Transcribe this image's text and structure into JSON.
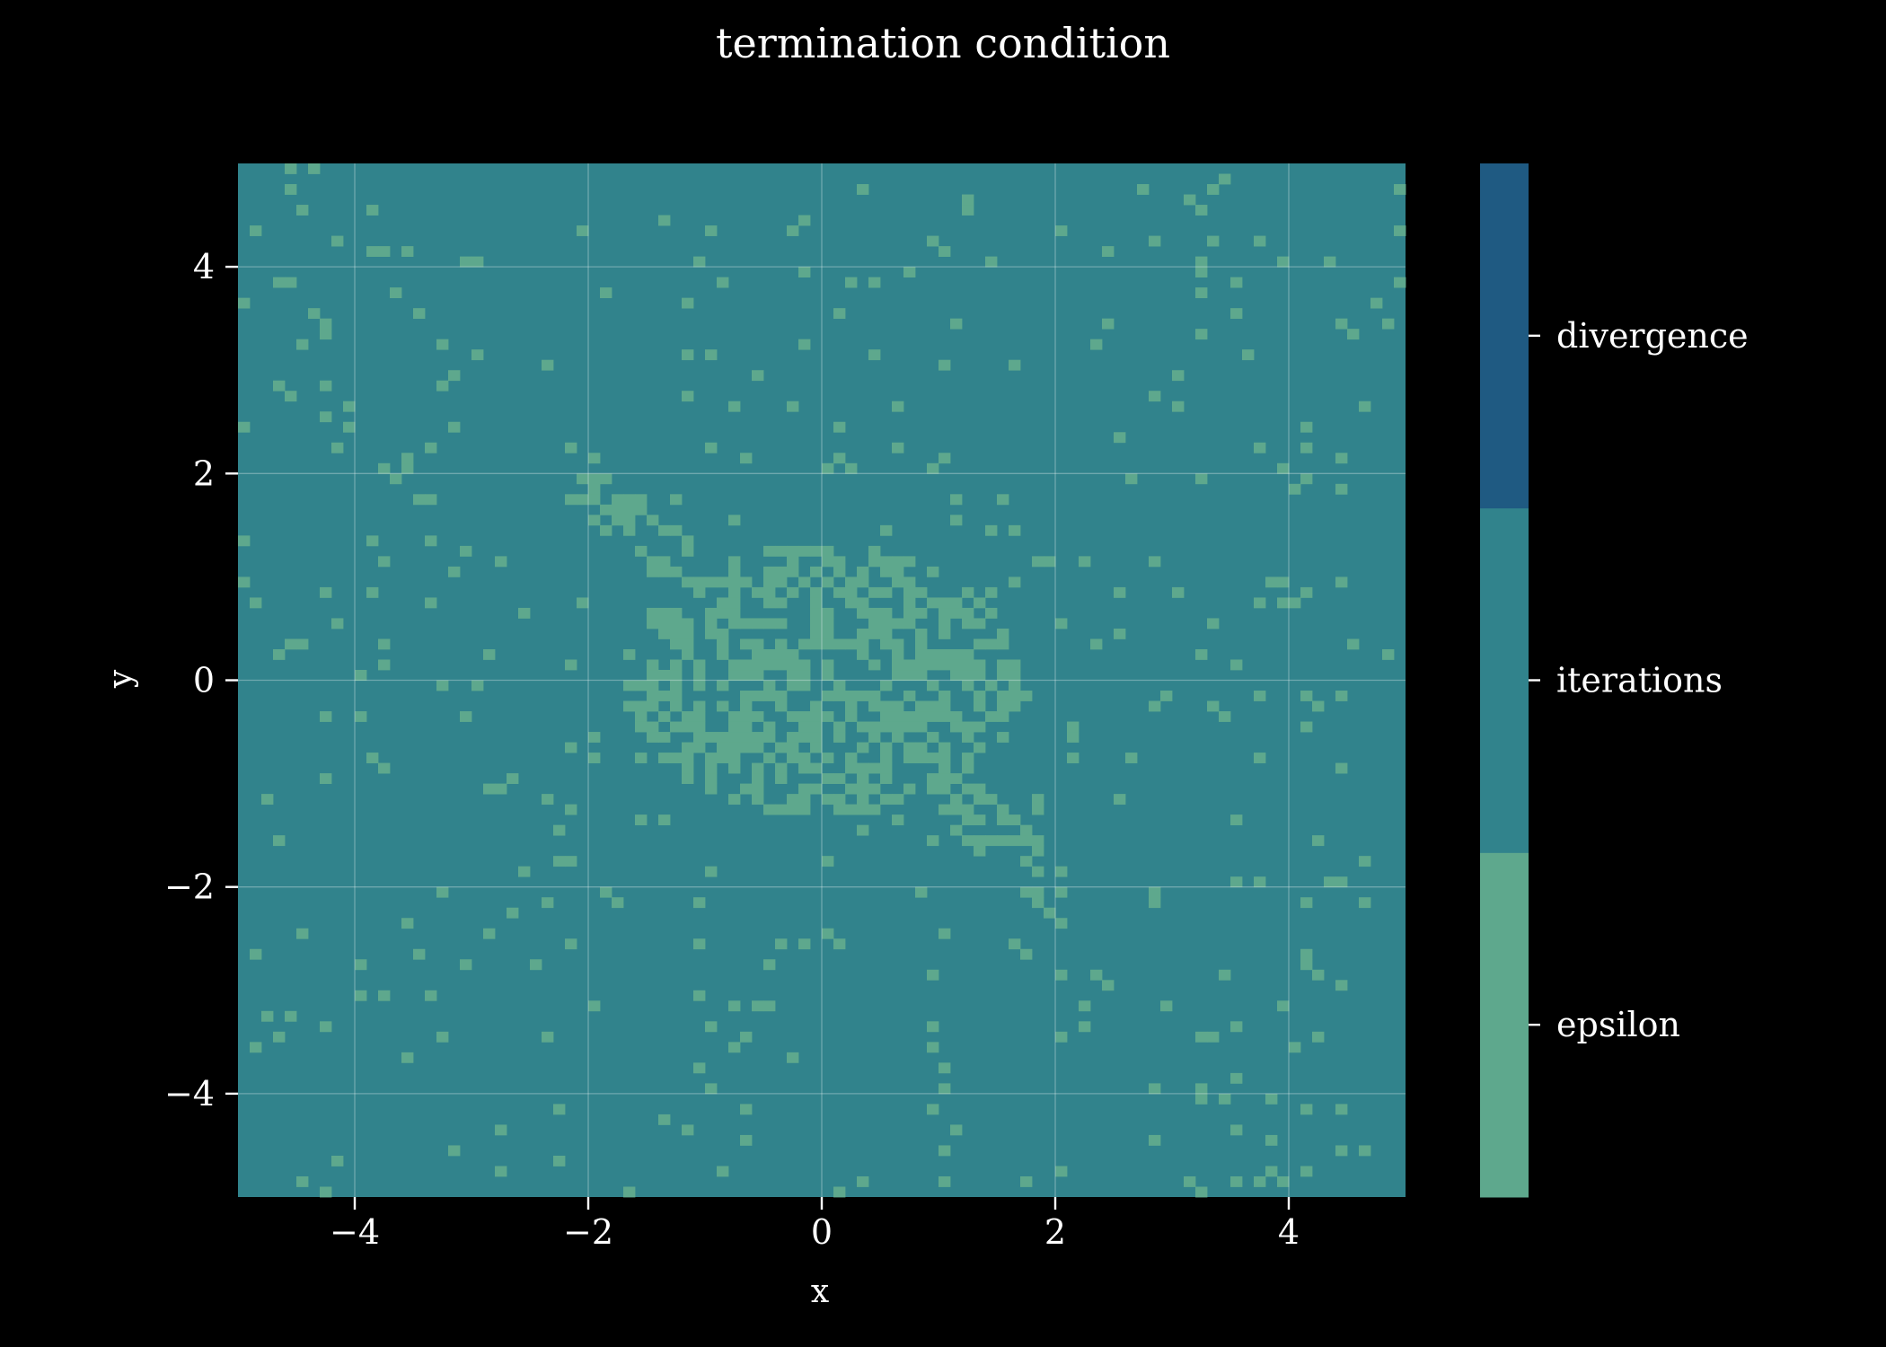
{
  "chart_data": {
    "type": "heatmap",
    "title": "termination condition",
    "xlabel": "x",
    "ylabel": "y",
    "xlim": [
      -5,
      5
    ],
    "ylim": [
      -5,
      5
    ],
    "x_ticks": [
      -4,
      -2,
      0,
      2,
      4
    ],
    "y_ticks": [
      -4,
      -2,
      0,
      2,
      4
    ],
    "x_tick_labels": [
      "−4",
      "−2",
      "0",
      "2",
      "4"
    ],
    "y_tick_labels": [
      "−4",
      "−2",
      "0",
      "2",
      "4"
    ],
    "grid": true,
    "grid_resolution": 100,
    "categories": [
      "epsilon",
      "iterations",
      "divergence"
    ],
    "colors": {
      "epsilon": "#5ea88d",
      "iterations": "#31838c",
      "divergence": "#1f5a82"
    },
    "dominant_category": "iterations",
    "epsilon_regions": [
      {
        "shape": "ellipse",
        "center": [
          0,
          0
        ],
        "radius_x": 1.7,
        "radius_y": 1.3,
        "density": 0.55
      },
      {
        "shape": "band",
        "from": [
          -2.1,
          2.0
        ],
        "to": [
          2.1,
          -2.1
        ],
        "width": 0.25,
        "density": 0.45
      },
      {
        "shape": "scatter",
        "extent": [
          -5,
          5,
          -5,
          5
        ],
        "density": 0.035
      }
    ],
    "colorbar": {
      "ticks": [
        "epsilon",
        "iterations",
        "divergence"
      ],
      "position": "right"
    }
  }
}
